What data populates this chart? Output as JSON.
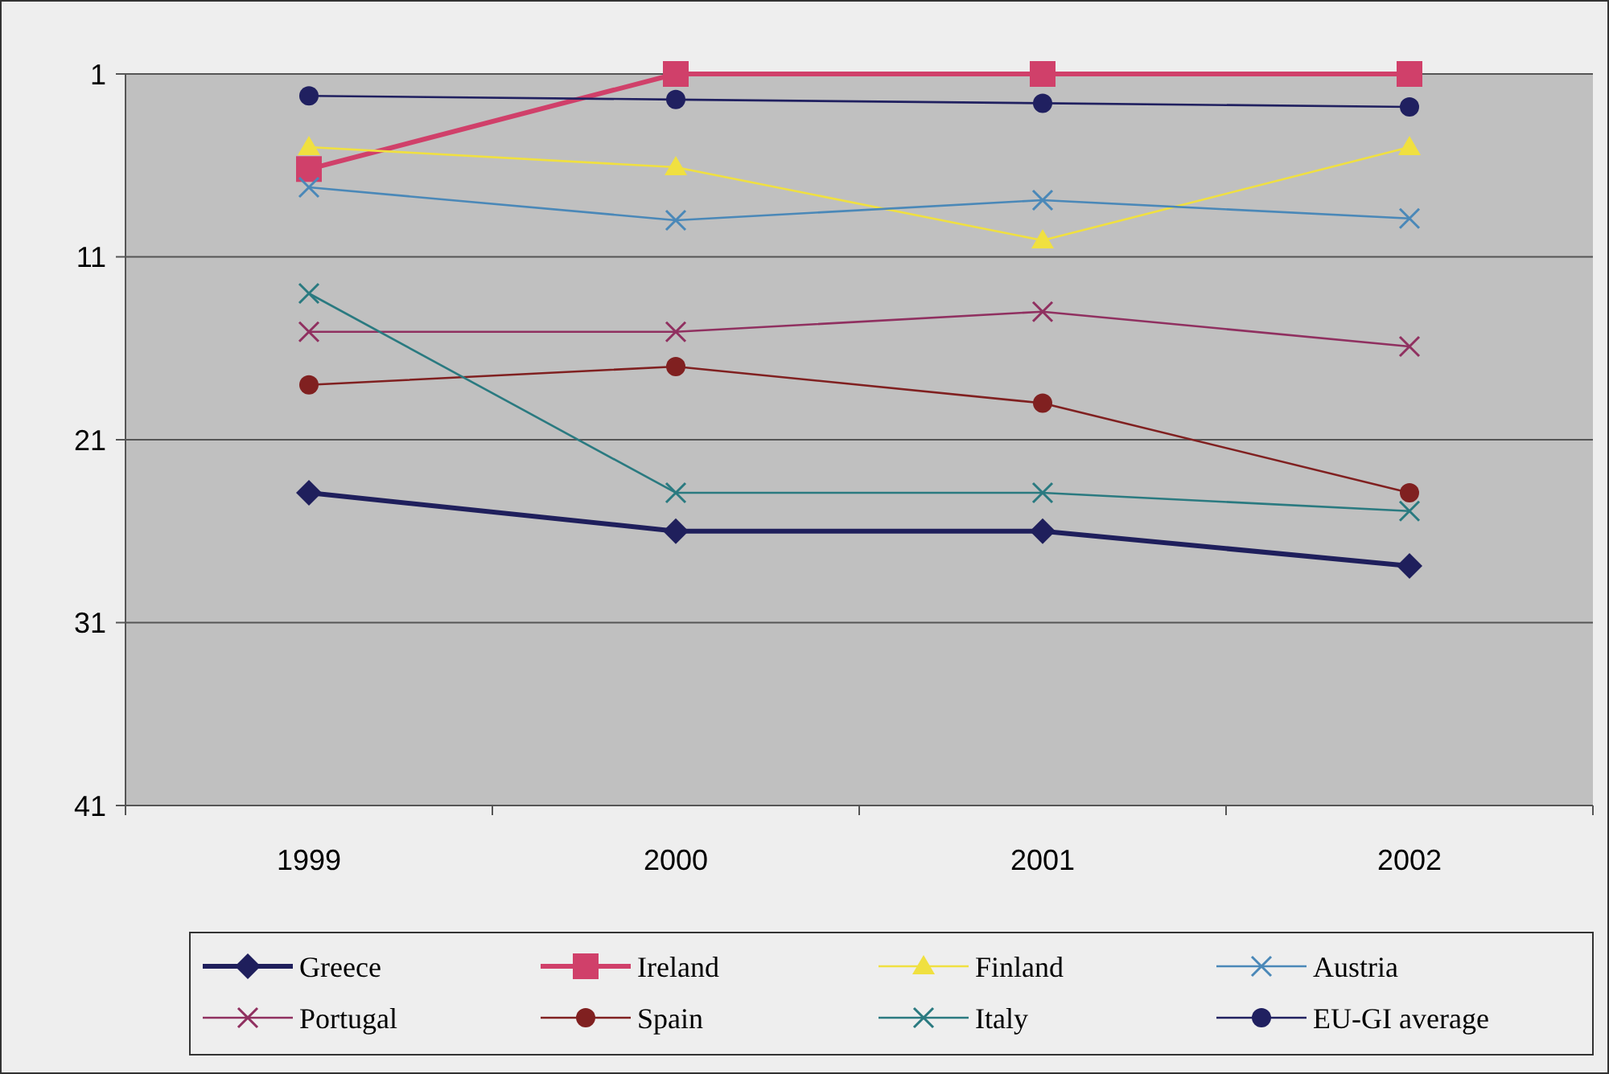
{
  "chart_data": {
    "type": "line",
    "categories": [
      "1999",
      "2000",
      "2001",
      "2002"
    ],
    "ylim": [
      41,
      1
    ],
    "yticks": [
      1,
      11,
      21,
      31,
      41
    ],
    "grid": "y",
    "legend": "bottom",
    "series": [
      {
        "name": "Greece",
        "color": "#1f1f5c",
        "marker": "diamond",
        "values": [
          23.9,
          26,
          26,
          27.9
        ]
      },
      {
        "name": "Ireland",
        "color": "#d0406a",
        "marker": "square",
        "values": [
          6.2,
          1,
          1,
          1
        ]
      },
      {
        "name": "Finland",
        "color": "#f0e040",
        "marker": "triangle",
        "values": [
          5,
          6.1,
          10.1,
          5
        ]
      },
      {
        "name": "Austria",
        "color": "#4a88b8",
        "marker": "cross",
        "values": [
          7.2,
          9,
          7.9,
          8.9
        ]
      },
      {
        "name": "Portugal",
        "color": "#903060",
        "marker": "cross",
        "values": [
          15.1,
          15.1,
          14,
          15.9
        ]
      },
      {
        "name": "Spain",
        "color": "#802020",
        "marker": "circle",
        "values": [
          18,
          17,
          19,
          23.9
        ]
      },
      {
        "name": "Italy",
        "color": "#2a7a80",
        "marker": "cross",
        "values": [
          13,
          23.9,
          23.9,
          24.9
        ]
      },
      {
        "name": "EU-GI average",
        "color": "#202060",
        "marker": "circle",
        "values": [
          2.2,
          2.4,
          2.6,
          2.8
        ]
      }
    ]
  }
}
